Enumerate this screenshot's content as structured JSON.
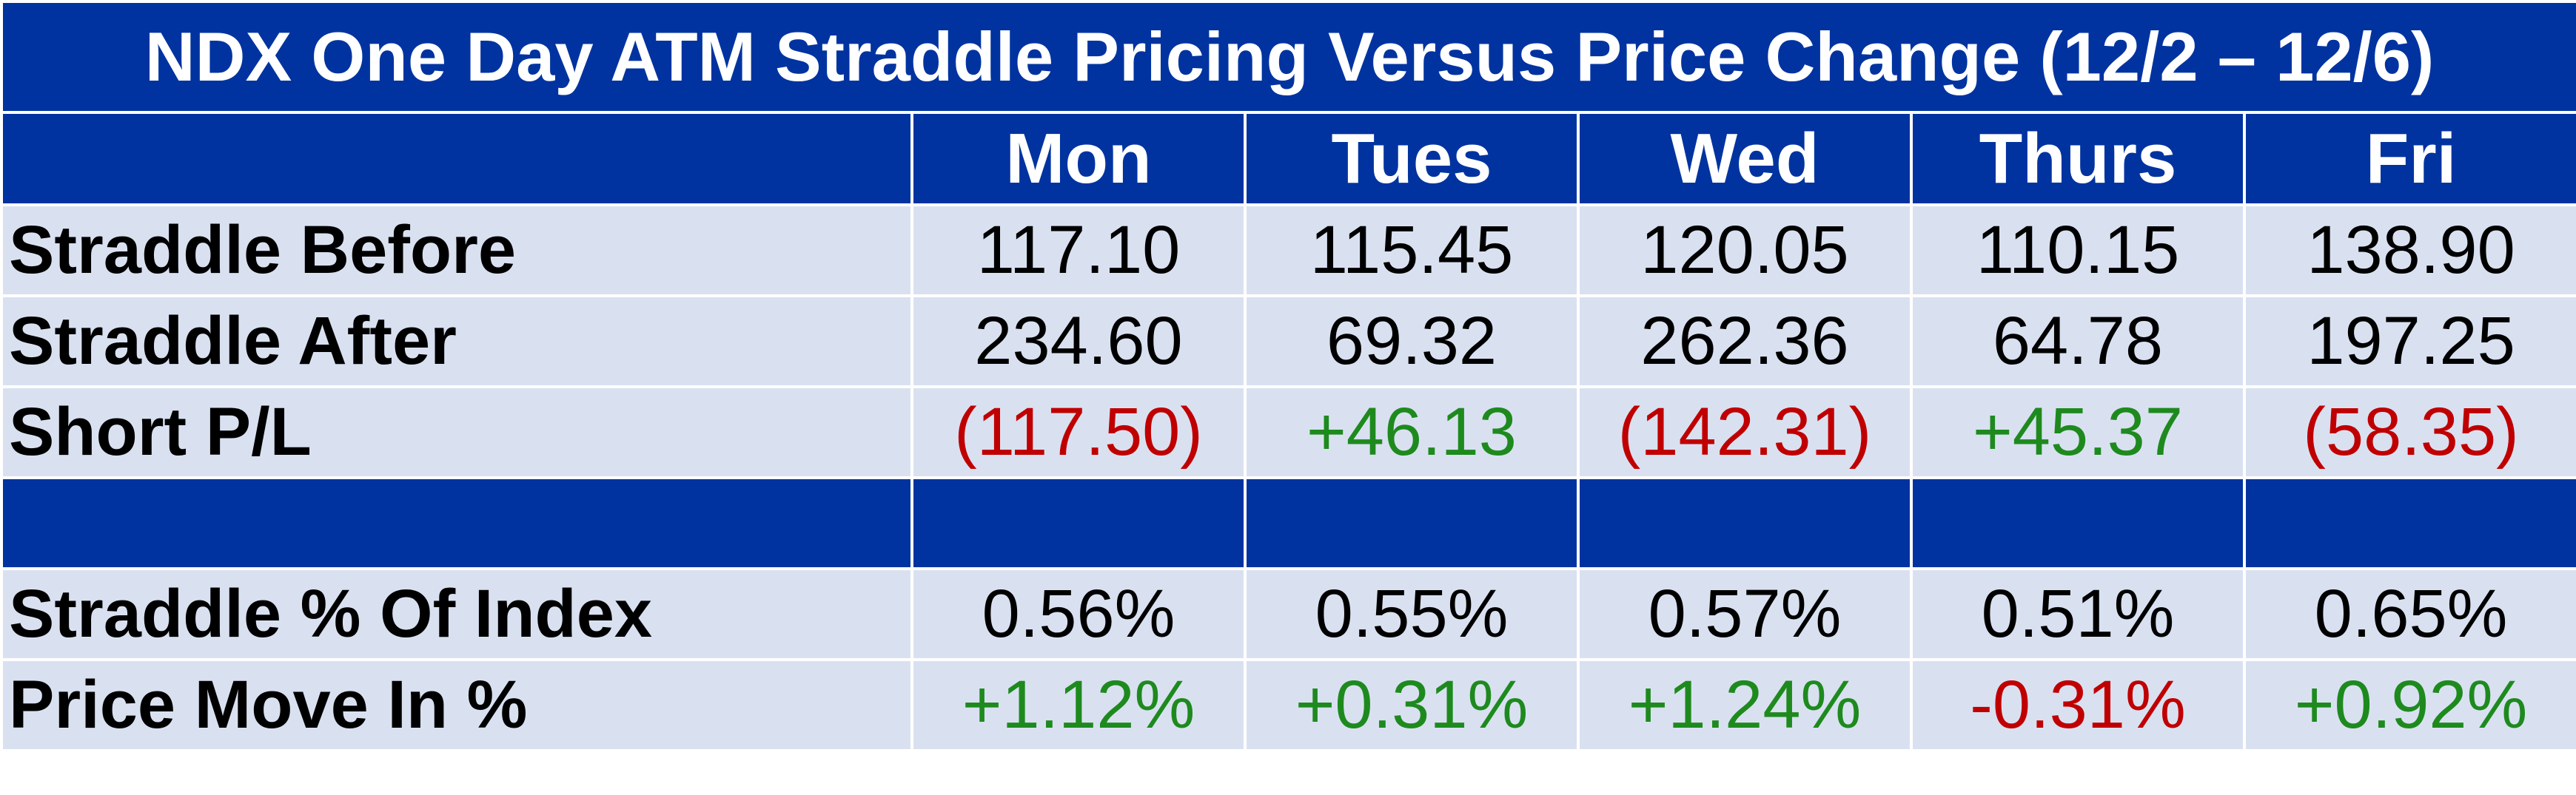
{
  "title": "NDX One Day ATM Straddle Pricing Versus Price Change (12/2 – 12/6)",
  "days": [
    "Mon",
    "Tues",
    "Wed",
    "Thurs",
    "Fri"
  ],
  "rows": {
    "straddle_before": {
      "label": "Straddle Before",
      "values": [
        "117.10",
        "115.45",
        "120.05",
        "110.15",
        "138.90"
      ]
    },
    "straddle_after": {
      "label": "Straddle After",
      "values": [
        "234.60",
        "69.32",
        "262.36",
        "64.78",
        "197.25"
      ]
    },
    "short_pl": {
      "label": "Short P/L",
      "values": [
        "(117.50)",
        "+46.13",
        "(142.31)",
        "+45.37",
        "(58.35)"
      ],
      "signs": [
        "neg",
        "pos",
        "neg",
        "pos",
        "neg"
      ]
    },
    "straddle_pct": {
      "label": "Straddle % Of Index",
      "values": [
        "0.56%",
        "0.55%",
        "0.57%",
        "0.51%",
        "0.65%"
      ]
    },
    "price_move_pct": {
      "label": "Price Move In %",
      "values": [
        "+1.12%",
        "+0.31%",
        "+1.24%",
        "-0.31%",
        "+0.92%"
      ],
      "signs": [
        "pos",
        "pos",
        "pos",
        "neg",
        "pos"
      ]
    }
  },
  "colors": {
    "header_bg": "#0033a0",
    "row_bg": "#d9e1f1",
    "positive": "#1e8a1e",
    "negative": "#c00000"
  }
}
